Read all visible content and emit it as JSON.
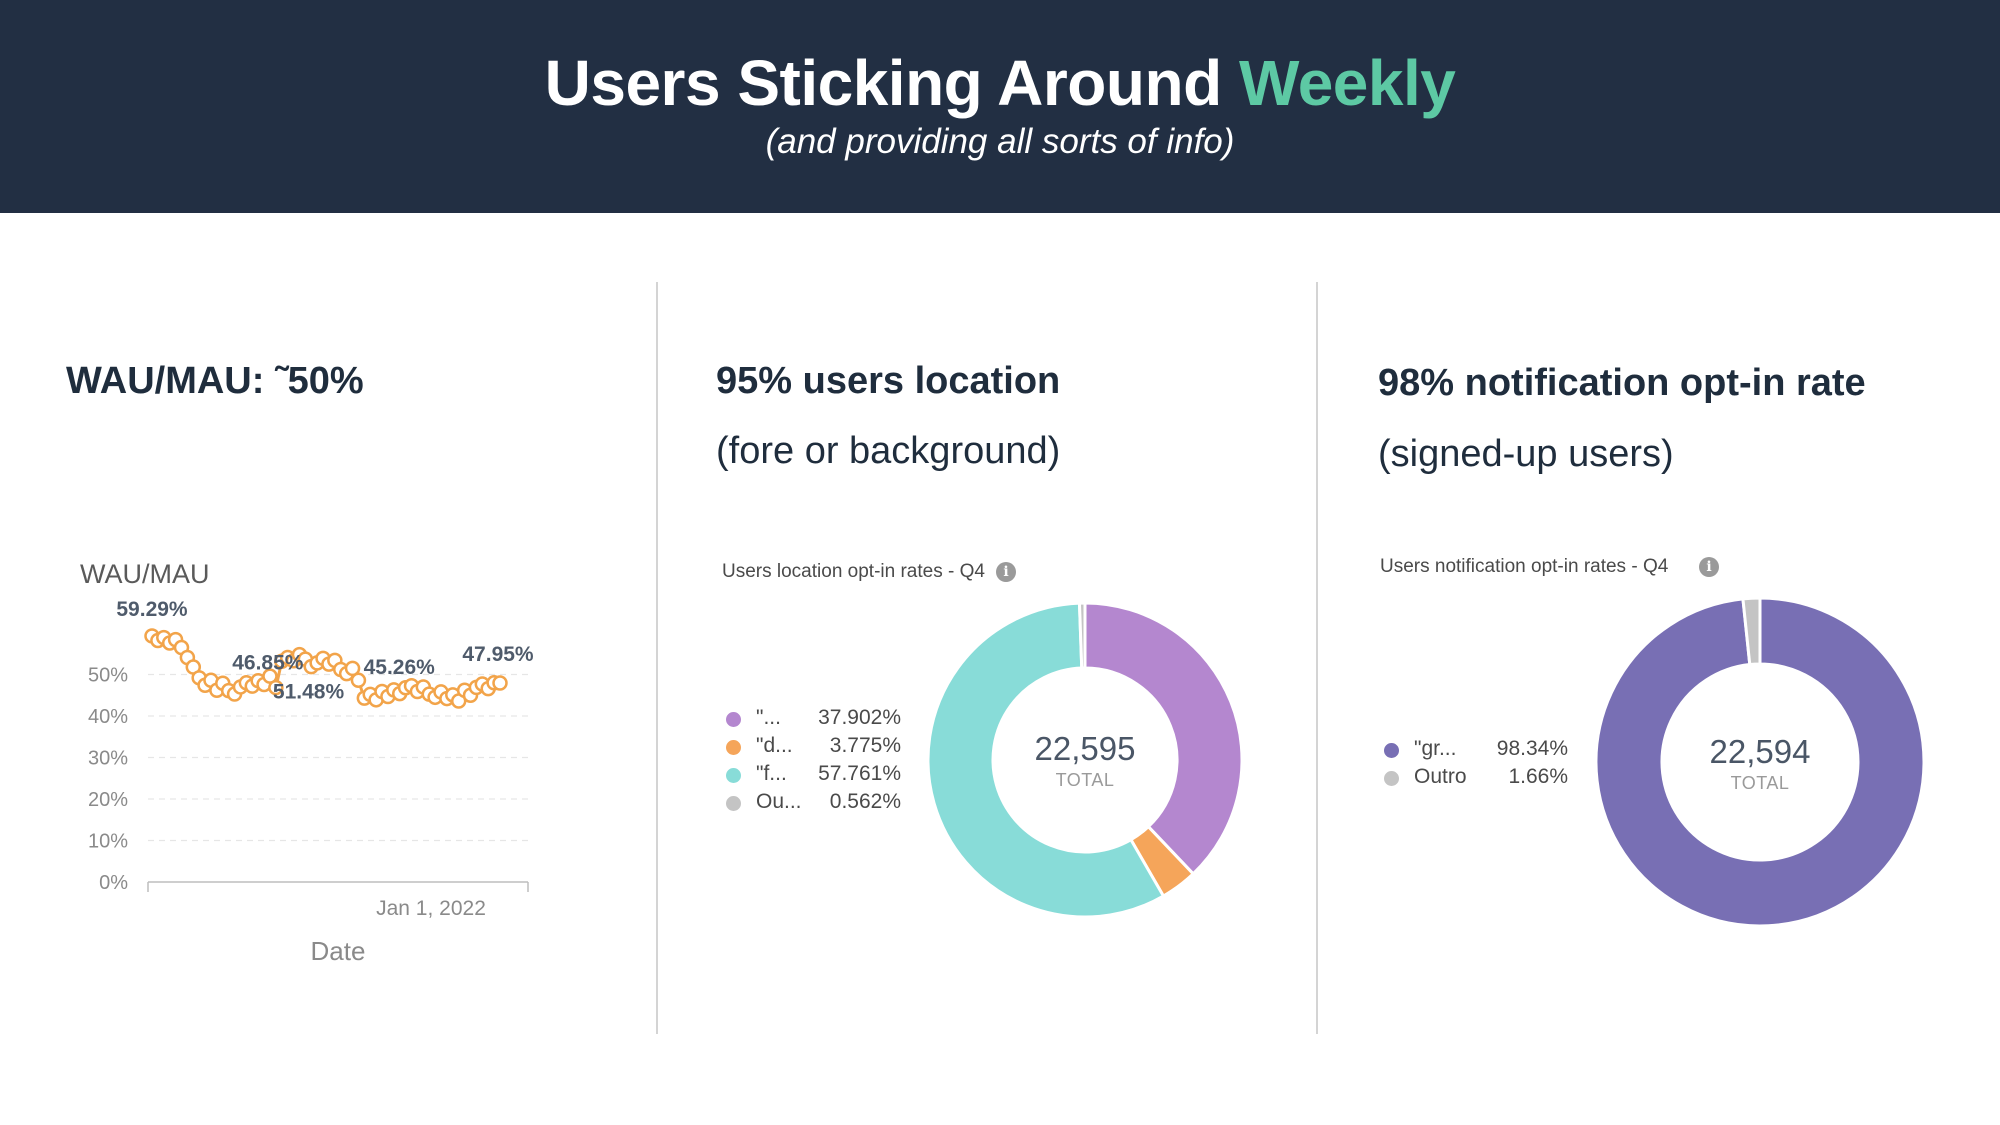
{
  "header": {
    "title_main": "Users Sticking Around",
    "title_accent": "Weekly",
    "subtitle": "(and providing all sorts of info)"
  },
  "colors": {
    "header_bg": "#222f43",
    "accent": "#5dc9a4",
    "line_orange": "#f2a44a",
    "purple": "#b487cf",
    "orange": "#f5a55a",
    "teal": "#88dcd8",
    "gray": "#c4c4c4",
    "deep_purple": "#786fb4"
  },
  "panels": {
    "wau": {
      "title": "WAU/MAU: ˜50%"
    },
    "location": {
      "title": "95% users location",
      "subtitle": "(fore or background)"
    },
    "notification": {
      "title": "98% notification opt-in rate",
      "subtitle": "(signed-up users)"
    }
  },
  "chart_data": [
    {
      "type": "line",
      "title": "WAU/MAU",
      "xlabel": "Date",
      "ylabel": "",
      "ylim": [
        0,
        60
      ],
      "yticks": [
        "0%",
        "10%",
        "20%",
        "30%",
        "40%",
        "50%"
      ],
      "ytick_values": [
        0,
        10,
        20,
        30,
        40,
        50
      ],
      "xtick_label": "Jan 1, 2022",
      "grid": true,
      "series": [
        {
          "values": [
            59.29,
            58.2,
            58.9,
            57.6,
            58.4,
            56.5,
            54.1,
            51.8,
            49.2,
            47.4,
            48.6,
            46.2,
            47.9,
            46.1,
            45.3,
            47.0,
            48.0,
            47.2,
            48.5,
            47.6,
            49.6,
            46.85,
            53.2,
            54.1,
            53.3,
            54.8,
            53.7,
            51.9,
            52.8,
            53.9,
            52.5,
            53.4,
            51.2,
            50.2,
            51.48,
            48.6,
            44.3,
            45.2,
            43.9,
            45.9,
            44.7,
            46.3,
            45.4,
            46.8,
            47.3,
            45.9,
            47.0,
            45.26,
            44.5,
            45.8,
            44.2,
            45.1,
            43.6,
            46.2,
            45.0,
            46.9,
            47.7,
            46.6,
            48.0,
            47.95
          ]
        }
      ],
      "annotations": [
        "59.29%",
        "46.85%",
        "51.48%",
        "45.26%",
        "47.95%"
      ]
    },
    {
      "type": "pie",
      "title": "Users location opt-in rates - Q4",
      "total": "22,595",
      "total_label": "TOTAL",
      "slices": [
        {
          "label": "\"...",
          "value": 37.902,
          "display": "37.902%"
        },
        {
          "label": "\"d...",
          "value": 3.775,
          "display": "3.775%"
        },
        {
          "label": "\"f...",
          "value": 57.761,
          "display": "57.761%"
        },
        {
          "label": "Ou...",
          "value": 0.562,
          "display": "0.562%"
        }
      ]
    },
    {
      "type": "pie",
      "title": "Users notification opt-in rates - Q4",
      "total": "22,594",
      "total_label": "TOTAL",
      "slices": [
        {
          "label": "\"gr...",
          "value": 98.34,
          "display": "98.34%"
        },
        {
          "label": "Outro",
          "value": 1.66,
          "display": "1.66%"
        }
      ]
    }
  ]
}
